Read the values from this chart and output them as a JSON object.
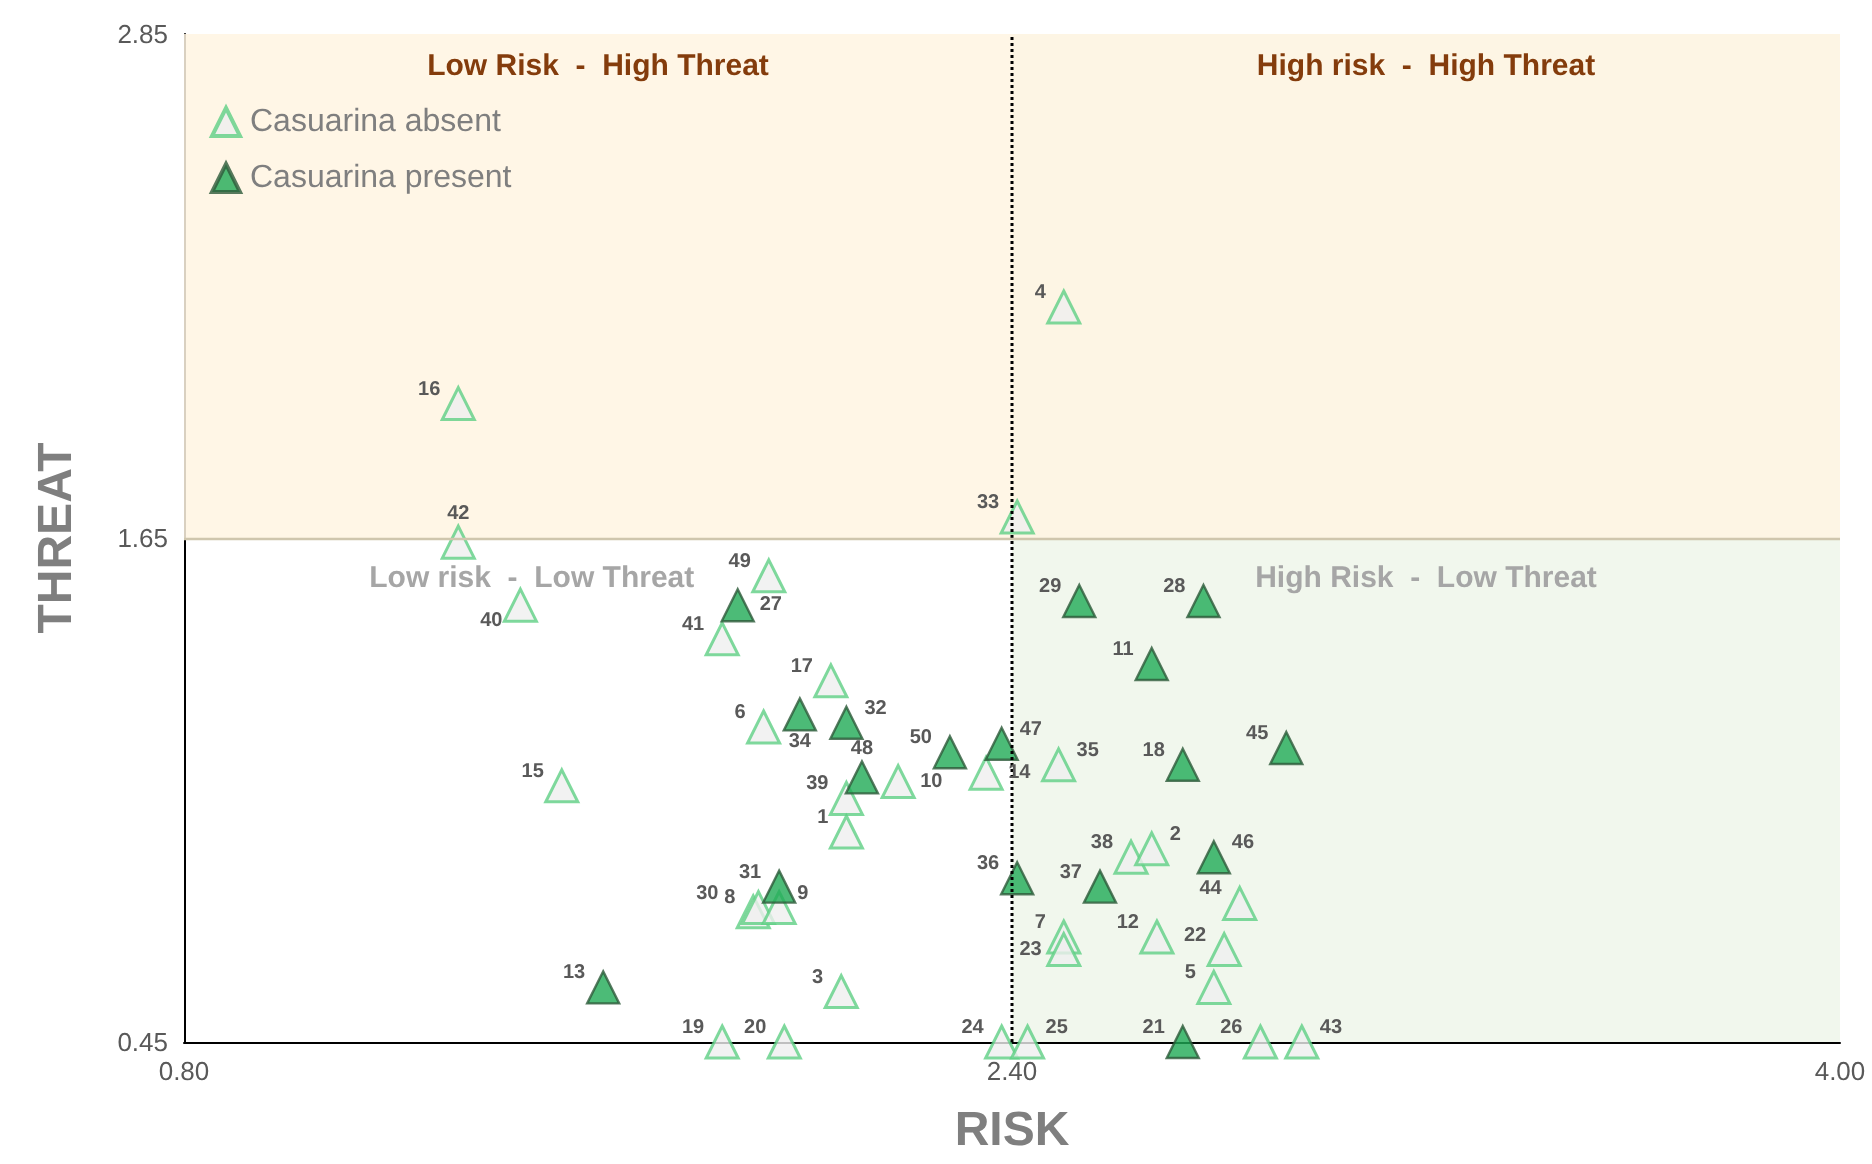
{
  "chart_data": {
    "type": "scatter",
    "xlabel": "RISK",
    "ylabel": "THREAT",
    "marker": "triangle",
    "legend": "top left",
    "grid": false,
    "xlim": [
      0.8,
      4.0
    ],
    "xticks": [
      {
        "value": 0.8,
        "label": "0.80"
      },
      {
        "value": 2.4,
        "label": "2.40"
      },
      {
        "value": 4.0,
        "label": "4.00"
      }
    ],
    "ylim": [
      0.45,
      2.85
    ],
    "yticks": [
      0.45,
      1.65,
      2.85
    ],
    "series": [
      {
        "name": "Casuarina absent",
        "color": "#5fcf85",
        "x": [
          1.33,
          1.33,
          1.45,
          1.93,
          1.84,
          2.05,
          1.92,
          1.53,
          2.08,
          2.18,
          2.35,
          2.08,
          1.9,
          1.91,
          1.95,
          2.07,
          1.84,
          1.96,
          2.38,
          2.43,
          2.41,
          2.5,
          2.49,
          2.63,
          2.67,
          2.5,
          2.5,
          2.68,
          2.84,
          2.81,
          2.79,
          2.88,
          2.96
        ],
        "values": [
          1.97,
          1.64,
          1.49,
          1.56,
          1.41,
          1.31,
          1.2,
          1.06,
          1.03,
          1.07,
          1.09,
          0.95,
          0.76,
          0.77,
          0.77,
          0.57,
          0.45,
          0.45,
          0.45,
          0.45,
          1.7,
          2.2,
          1.11,
          0.89,
          0.91,
          0.7,
          0.67,
          0.7,
          0.78,
          0.67,
          0.58,
          0.45,
          0.45
        ]
      },
      {
        "name": "Casuarina present",
        "color": "#1faa55",
        "x": [
          1.87,
          1.99,
          2.08,
          2.11,
          2.28,
          2.38,
          1.95,
          1.61,
          2.41,
          2.73,
          2.53,
          2.77,
          2.67,
          2.93,
          2.73,
          2.79,
          2.57
        ],
        "values": [
          1.49,
          1.23,
          1.21,
          1.08,
          1.14,
          1.16,
          0.82,
          0.58,
          0.84,
          0.45,
          1.5,
          1.5,
          1.35,
          1.15,
          1.11,
          0.89,
          0.82
        ]
      }
    ],
    "bands": [
      {
        "axis": "x",
        "from": 2.4,
        "to": 4.0,
        "color": "#eef6ea"
      },
      {
        "axis": "y",
        "from": 1.65,
        "to": 2.85,
        "color": "#fff4e2"
      }
    ],
    "ref_lines": [
      {
        "axis": "x",
        "value": 2.4,
        "line_style": "dotted",
        "color": "#000000"
      },
      {
        "axis": "y",
        "value": 1.65,
        "line_style": "solid",
        "color": "#cfc6ad"
      }
    ],
    "annotations": [
      "Low Risk  -  High Threat",
      "High risk  -  High Threat",
      "Low risk  -  Low Threat",
      "High Risk  -  Low Threat",
      {
        "text": "16",
        "x": 1.33,
        "y": 1.97
      },
      {
        "text": "42",
        "x": 1.33,
        "y": 1.64
      },
      {
        "text": "40",
        "x": 1.45,
        "y": 1.49
      },
      {
        "text": "49",
        "x": 1.93,
        "y": 1.56
      },
      {
        "text": "41",
        "x": 1.84,
        "y": 1.41
      },
      {
        "text": "17",
        "x": 2.05,
        "y": 1.31
      },
      {
        "text": "6",
        "x": 1.92,
        "y": 1.2
      },
      {
        "text": "15",
        "x": 1.53,
        "y": 1.06
      },
      {
        "text": "39",
        "x": 2.08,
        "y": 1.03
      },
      {
        "text": "10",
        "x": 2.18,
        "y": 1.07
      },
      {
        "text": "14",
        "x": 2.35,
        "y": 1.09
      },
      {
        "text": "1",
        "x": 2.08,
        "y": 0.95
      },
      {
        "text": "8",
        "x": 1.9,
        "y": 0.76
      },
      {
        "text": "30",
        "x": 1.91,
        "y": 0.77
      },
      {
        "text": "9",
        "x": 1.95,
        "y": 0.77
      },
      {
        "text": "3",
        "x": 2.07,
        "y": 0.57
      },
      {
        "text": "19",
        "x": 1.84,
        "y": 0.45
      },
      {
        "text": "20",
        "x": 1.96,
        "y": 0.45
      },
      {
        "text": "24",
        "x": 2.38,
        "y": 0.45
      },
      {
        "text": "25",
        "x": 2.43,
        "y": 0.45
      },
      {
        "text": "33",
        "x": 2.41,
        "y": 1.7
      },
      {
        "text": "4",
        "x": 2.5,
        "y": 2.2
      },
      {
        "text": "35",
        "x": 2.49,
        "y": 1.11
      },
      {
        "text": "38",
        "x": 2.63,
        "y": 0.89
      },
      {
        "text": "2",
        "x": 2.67,
        "y": 0.91
      },
      {
        "text": "7",
        "x": 2.5,
        "y": 0.7
      },
      {
        "text": "23",
        "x": 2.5,
        "y": 0.67
      },
      {
        "text": "12",
        "x": 2.68,
        "y": 0.7
      },
      {
        "text": "44",
        "x": 2.84,
        "y": 0.78
      },
      {
        "text": "22",
        "x": 2.81,
        "y": 0.67
      },
      {
        "text": "5",
        "x": 2.79,
        "y": 0.58
      },
      {
        "text": "26",
        "x": 2.88,
        "y": 0.45
      },
      {
        "text": "43",
        "x": 2.96,
        "y": 0.45
      },
      {
        "text": "27",
        "x": 1.87,
        "y": 1.49
      },
      {
        "text": "34",
        "x": 1.99,
        "y": 1.23
      },
      {
        "text": "32",
        "x": 2.08,
        "y": 1.21
      },
      {
        "text": "48",
        "x": 2.11,
        "y": 1.08
      },
      {
        "text": "50",
        "x": 2.28,
        "y": 1.14
      },
      {
        "text": "47",
        "x": 2.38,
        "y": 1.16
      },
      {
        "text": "31",
        "x": 1.95,
        "y": 0.82
      },
      {
        "text": "13",
        "x": 1.61,
        "y": 0.58
      },
      {
        "text": "36",
        "x": 2.41,
        "y": 0.84
      },
      {
        "text": "21",
        "x": 2.73,
        "y": 0.45
      },
      {
        "text": "29",
        "x": 2.53,
        "y": 1.5
      },
      {
        "text": "28",
        "x": 2.77,
        "y": 1.5
      },
      {
        "text": "11",
        "x": 2.67,
        "y": 1.35
      },
      {
        "text": "45",
        "x": 2.93,
        "y": 1.15
      },
      {
        "text": "18",
        "x": 2.73,
        "y": 1.11
      },
      {
        "text": "46",
        "x": 2.79,
        "y": 0.89
      },
      {
        "text": "37",
        "x": 2.57,
        "y": 0.82
      }
    ]
  }
}
